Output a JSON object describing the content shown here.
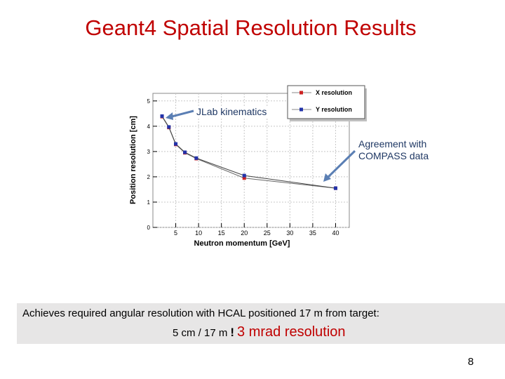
{
  "slide": {
    "title": "Geant4 Spatial Resolution Results",
    "annotation_left": "JLab kinematics",
    "annotation_right_line1": "Agreement with",
    "annotation_right_line2": "COMPASS data",
    "summary_line1": "Achieves required angular resolution  with HCAL positioned 17 m from target:",
    "summary_calc": "5 cm / 17 m",
    "summary_arrow": "!",
    "summary_result": "3  mrad resolution",
    "page_number": "8"
  },
  "chart_data": {
    "type": "line",
    "xlabel": "Neutron momentum [GeV]",
    "ylabel": "Position resolution [cm]",
    "xlim": [
      0,
      43
    ],
    "ylim": [
      0,
      5.3
    ],
    "xticks": [
      5,
      10,
      15,
      20,
      25,
      30,
      35,
      40
    ],
    "yticks": [
      0,
      1,
      2,
      3,
      4,
      5
    ],
    "grid": true,
    "legend_position": "top-right",
    "series": [
      {
        "name": "X resolution",
        "color": "#cc2222",
        "x": [
          2,
          3.5,
          5,
          7,
          9.5,
          20,
          40
        ],
        "y": [
          4.38,
          3.95,
          3.28,
          2.95,
          2.72,
          1.95,
          1.55
        ]
      },
      {
        "name": "Y resolution",
        "color": "#2233aa",
        "x": [
          2,
          3.5,
          5,
          7,
          9.5,
          20,
          40
        ],
        "y": [
          4.4,
          3.97,
          3.3,
          2.97,
          2.74,
          2.05,
          1.55
        ]
      }
    ]
  }
}
